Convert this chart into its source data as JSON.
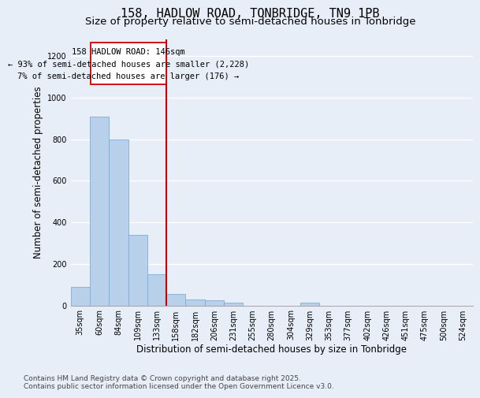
{
  "title_line1": "158, HADLOW ROAD, TONBRIDGE, TN9 1PB",
  "title_line2": "Size of property relative to semi-detached houses in Tonbridge",
  "xlabel": "Distribution of semi-detached houses by size in Tonbridge",
  "ylabel": "Number of semi-detached properties",
  "categories": [
    "35sqm",
    "60sqm",
    "84sqm",
    "109sqm",
    "133sqm",
    "158sqm",
    "182sqm",
    "206sqm",
    "231sqm",
    "255sqm",
    "280sqm",
    "304sqm",
    "329sqm",
    "353sqm",
    "377sqm",
    "402sqm",
    "426sqm",
    "451sqm",
    "475sqm",
    "500sqm",
    "524sqm"
  ],
  "values": [
    90,
    910,
    800,
    340,
    150,
    55,
    30,
    25,
    12,
    0,
    0,
    0,
    12,
    0,
    0,
    0,
    0,
    0,
    0,
    0,
    0
  ],
  "bar_color": "#b8d0ea",
  "bar_edge_color": "#7aafd4",
  "vline_x_index": 4.5,
  "vline_color": "#cc0000",
  "annotation_box_color": "#cc0000",
  "annotation_text_line1": "158 HADLOW ROAD: 146sqm",
  "annotation_text_line2": "← 93% of semi-detached houses are smaller (2,228)",
  "annotation_text_line3": "7% of semi-detached houses are larger (176) →",
  "ylim": [
    0,
    1280
  ],
  "yticks": [
    0,
    200,
    400,
    600,
    800,
    1000,
    1200
  ],
  "bg_color": "#e8eef8",
  "grid_color": "#ffffff",
  "footer_line1": "Contains HM Land Registry data © Crown copyright and database right 2025.",
  "footer_line2": "Contains public sector information licensed under the Open Government Licence v3.0.",
  "title_fontsize": 11,
  "subtitle_fontsize": 9.5,
  "axis_label_fontsize": 8.5,
  "tick_fontsize": 7,
  "annotation_fontsize": 7.5,
  "footer_fontsize": 6.5
}
